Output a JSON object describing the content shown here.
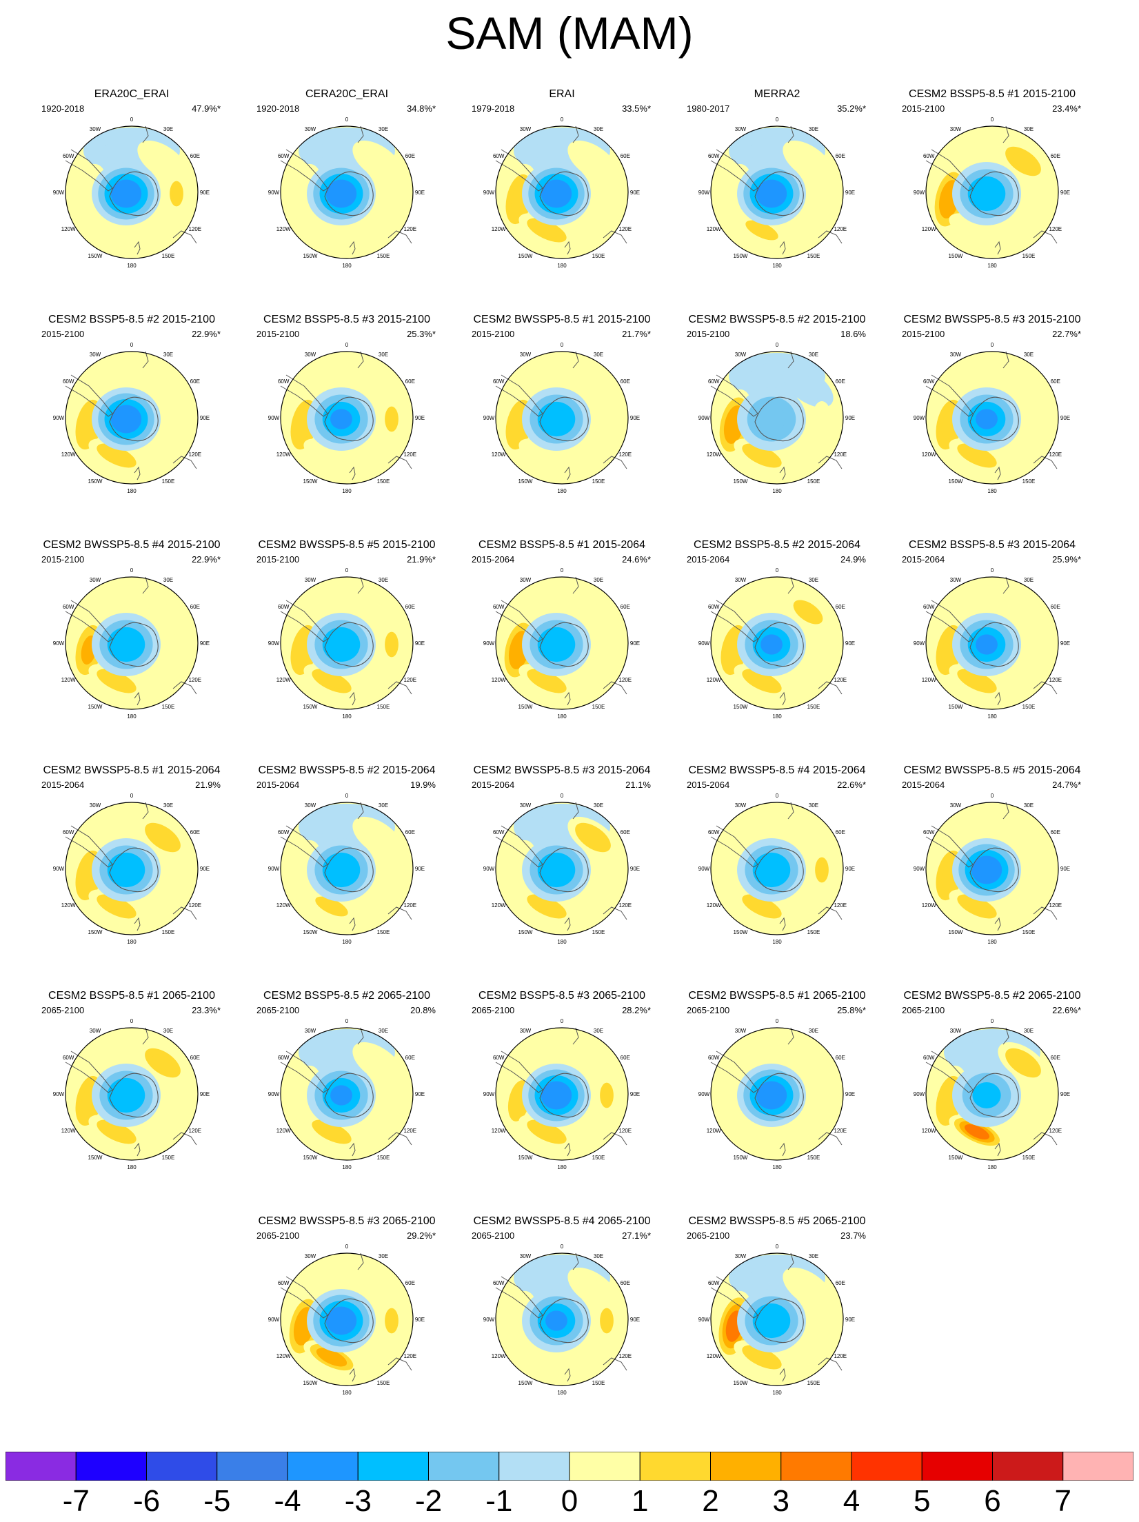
{
  "title": "SAM (MAM)",
  "panels": [
    {
      "title": "ERA20C_ERAI",
      "period": "1920-2018",
      "pct": "47.9%*",
      "pattern": [
        -3.5,
        0.5,
        0.3,
        1.2,
        0.4,
        -0.2
      ]
    },
    {
      "title": "CERA20C_ERAI",
      "period": "1920-2018",
      "pct": "34.8%*",
      "pattern": [
        -3.2,
        0.3,
        0.2,
        0.8,
        0.3,
        -0.5
      ]
    },
    {
      "title": "ERAI",
      "period": "1979-2018",
      "pct": "33.5%*",
      "pattern": [
        -3.2,
        1.2,
        0.4,
        0.9,
        1.3,
        -0.3
      ]
    },
    {
      "title": "MERRA2",
      "period": "1980-2017",
      "pct": "35.2%*",
      "pattern": [
        -3.3,
        0.9,
        0.5,
        0.8,
        1.0,
        -0.2
      ]
    },
    {
      "title": "CESM2 BSSP5-8.5 #1 2015-2100",
      "period": "2015-2100",
      "pct": "23.4%*",
      "pattern": [
        -2.6,
        2.2,
        1.2,
        0.6,
        0.7,
        0.4
      ]
    },
    {
      "title": "CESM2 BSSP5-8.5 #2 2015-2100",
      "period": "2015-2100",
      "pct": "22.9%*",
      "pattern": [
        -3.1,
        1.6,
        0.8,
        0.5,
        1.5,
        0.2
      ]
    },
    {
      "title": "CESM2 BSSP5-8.5 #3 2015-2100",
      "period": "2015-2100",
      "pct": "25.3%*",
      "pattern": [
        -3.0,
        1.3,
        0.6,
        1.2,
        0.5,
        0.3
      ]
    },
    {
      "title": "CESM2 BWSSP5-8.5 #1 2015-2100",
      "period": "2015-2100",
      "pct": "21.7%*",
      "pattern": [
        -2.9,
        1.1,
        0.7,
        0.4,
        0.6,
        0.2
      ]
    },
    {
      "title": "CESM2 BWSSP5-8.5 #2 2015-2100",
      "period": "2015-2100",
      "pct": "18.6%",
      "pattern": [
        -1.5,
        2.5,
        -0.5,
        0.7,
        1.8,
        -0.6
      ]
    },
    {
      "title": "CESM2 BWSSP5-8.5 #3 2015-2100",
      "period": "2015-2100",
      "pct": "22.7%*",
      "pattern": [
        -3.0,
        1.8,
        0.9,
        0.7,
        1.6,
        0.3
      ]
    },
    {
      "title": "CESM2 BWSSP5-8.5 #4 2015-2100",
      "period": "2015-2100",
      "pct": "22.9%*",
      "pattern": [
        -2.8,
        2.0,
        0.8,
        0.6,
        1.5,
        0.4
      ]
    },
    {
      "title": "CESM2 BWSSP5-8.5 #5 2015-2100",
      "period": "2015-2100",
      "pct": "21.9%*",
      "pattern": [
        -2.8,
        1.5,
        0.9,
        1.1,
        1.2,
        0.3
      ]
    },
    {
      "title": "CESM2 BSSP5-8.5 #1 2015-2064",
      "period": "2015-2064",
      "pct": "24.6%*",
      "pattern": [
        -2.9,
        2.2,
        0.8,
        0.7,
        1.7,
        0.2
      ]
    },
    {
      "title": "CESM2 BSSP5-8.5 #2 2015-2064",
      "period": "2015-2064",
      "pct": "24.9%",
      "pattern": [
        -3.0,
        1.7,
        1.0,
        0.8,
        1.4,
        0.3
      ]
    },
    {
      "title": "CESM2 BSSP5-8.5 #3 2015-2064",
      "period": "2015-2064",
      "pct": "25.9%*",
      "pattern": [
        -3.0,
        1.9,
        0.7,
        0.5,
        1.3,
        0.2
      ]
    },
    {
      "title": "CESM2 BWSSP5-8.5 #1 2015-2064",
      "period": "2015-2064",
      "pct": "21.9%",
      "pattern": [
        -2.5,
        1.5,
        1.3,
        0.6,
        1.4,
        0.5
      ]
    },
    {
      "title": "CESM2 BWSSP5-8.5 #2 2015-2064",
      "period": "2015-2064",
      "pct": "19.9%",
      "pattern": [
        -2.7,
        0.8,
        0.2,
        0.9,
        1.0,
        -0.7
      ]
    },
    {
      "title": "CESM2 BWSSP5-8.5 #3 2015-2064",
      "period": "2015-2064",
      "pct": "21.1%",
      "pattern": [
        -2.3,
        0.6,
        1.4,
        0.8,
        1.9,
        -0.4
      ]
    },
    {
      "title": "CESM2 BWSSP5-8.5 #4 2015-2064",
      "period": "2015-2064",
      "pct": "22.6%*",
      "pattern": [
        -2.9,
        0.9,
        0.7,
        1.2,
        1.3,
        0.3
      ]
    },
    {
      "title": "CESM2 BWSSP5-8.5 #5 2015-2064",
      "period": "2015-2064",
      "pct": "24.7%*",
      "pattern": [
        -3.1,
        1.2,
        0.5,
        0.6,
        1.6,
        0.2
      ]
    },
    {
      "title": "CESM2 BSSP5-8.5 #1 2065-2100",
      "period": "2065-2100",
      "pct": "23.3%*",
      "pattern": [
        -2.8,
        1.6,
        1.2,
        0.6,
        1.4,
        0.4
      ]
    },
    {
      "title": "CESM2 BSSP5-8.5 #2 2065-2100",
      "period": "2065-2100",
      "pct": "20.8%",
      "pattern": [
        -3.0,
        0.4,
        0.3,
        0.5,
        1.1,
        -0.6
      ]
    },
    {
      "title": "CESM2 BSSP5-8.5 #3 2065-2100",
      "period": "2065-2100",
      "pct": "28.2%*",
      "pattern": [
        -3.3,
        1.0,
        0.8,
        1.1,
        1.8,
        0.3
      ]
    },
    {
      "title": "CESM2 BWSSP5-8.5 #1 2065-2100",
      "period": "2065-2100",
      "pct": "25.8%*",
      "pattern": [
        -3.3,
        0.9,
        0.9,
        0.6,
        0.7,
        0.3
      ]
    },
    {
      "title": "CESM2 BWSSP5-8.5 #2 2065-2100",
      "period": "2065-2100",
      "pct": "22.6%*",
      "pattern": [
        -2.0,
        1.5,
        1.6,
        0.7,
        3.5,
        -0.3
      ]
    },
    {
      "title": "CESM2 BWSSP5-8.5 #3 2065-2100",
      "period": "2065-2100",
      "pct": "29.2%*",
      "pattern": [
        -3.3,
        2.4,
        0.6,
        1.6,
        2.3,
        0.2
      ]
    },
    {
      "title": "CESM2 BWSSP5-8.5 #4 2065-2100",
      "period": "2065-2100",
      "pct": "27.1%*",
      "pattern": [
        -3.0,
        0.6,
        0.5,
        1.8,
        0.4,
        -0.3
      ]
    },
    {
      "title": "CESM2 BWSSP5-8.5 #5 2065-2100",
      "period": "2065-2100",
      "pct": "23.7%",
      "pattern": [
        -2.2,
        3.5,
        0.4,
        0.9,
        1.4,
        -0.5
      ]
    }
  ],
  "map_labels": {
    "lon_0": "0",
    "lon_30e": "30E",
    "lon_60e": "60E",
    "lon_90e": "90E",
    "lon_120e": "120E",
    "lon_150e": "150E",
    "lon_180": "180",
    "lon_150w": "150W",
    "lon_120w": "120W",
    "lon_90w": "90W",
    "lon_60w": "60W",
    "lon_30w": "30W"
  },
  "colorbar": {
    "colors": [
      "#8a2be2",
      "#1e00ff",
      "#2f4ce8",
      "#3a7fe8",
      "#1e96ff",
      "#00bfff",
      "#74c7f0",
      "#b3dff5",
      "#ffffa6",
      "#ffd92f",
      "#ffb000",
      "#ff7a00",
      "#ff3300",
      "#e60000",
      "#cc1a1a",
      "#ffb3b3"
    ],
    "labels": [
      "-7",
      "-6",
      "-5",
      "-4",
      "-3",
      "-2",
      "-1",
      "0",
      "1",
      "2",
      "3",
      "4",
      "5",
      "6",
      "7"
    ]
  }
}
